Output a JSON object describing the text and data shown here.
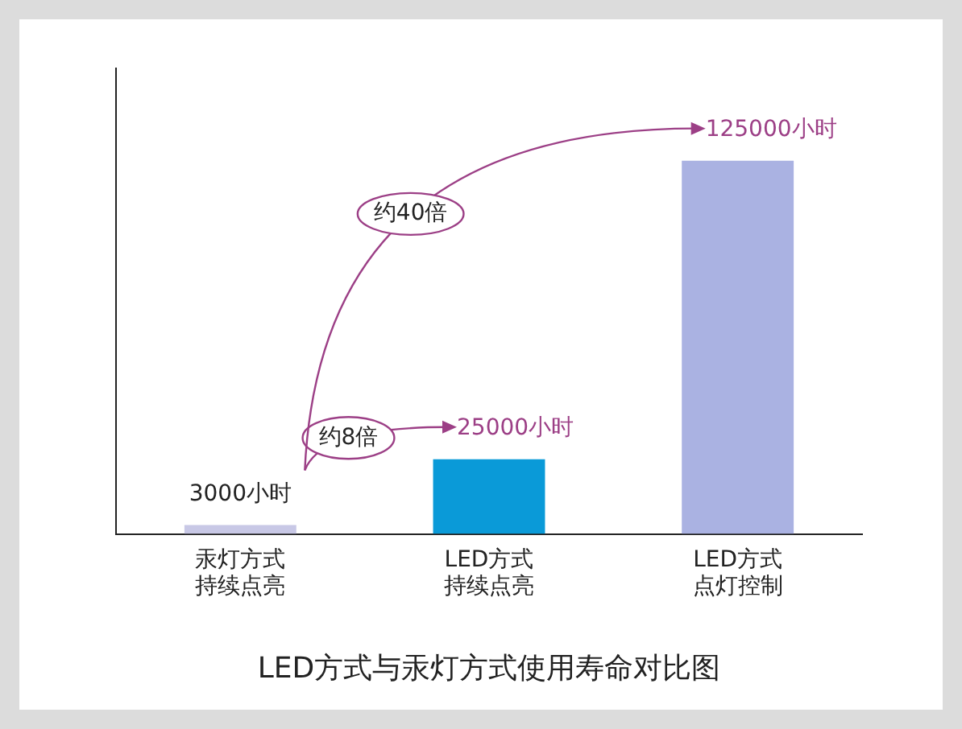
{
  "chart_data": {
    "type": "bar",
    "title": "LED方式与汞灯方式使用寿命对比图",
    "categories": [
      "汞灯方式持续点亮",
      "LED方式持续点亮",
      "LED方式点灯控制"
    ],
    "values": [
      3000,
      25000,
      125000
    ],
    "colors": [
      "#c8c8e6",
      "#0a9ad8",
      "#aab2e2"
    ],
    "value_labels": [
      "3000小时",
      "25000小时",
      "125000小时"
    ],
    "annotations": [
      "约8倍",
      "约40倍"
    ],
    "grid": false,
    "legend": false
  }
}
